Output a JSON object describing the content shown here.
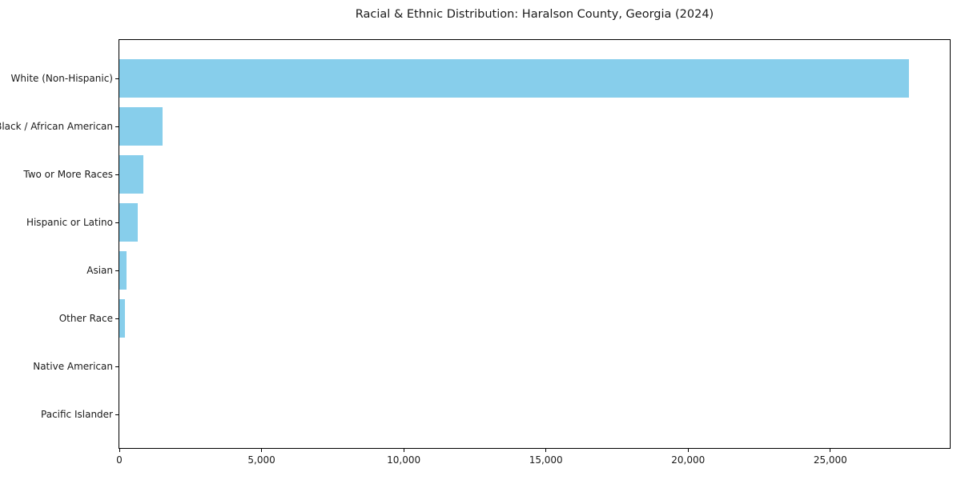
{
  "chart_data": {
    "type": "bar",
    "orientation": "horizontal",
    "title": "Racial & Ethnic Distribution: Haralson County, Georgia (2024)",
    "categories": [
      "White (Non-Hispanic)",
      "Black / African American",
      "Two or More Races",
      "Hispanic or Latino",
      "Asian",
      "Other Race",
      "Native American",
      "Pacific Islander"
    ],
    "values": [
      27750,
      1530,
      855,
      660,
      250,
      210,
      0,
      0
    ],
    "xlabel": "",
    "ylabel": "",
    "xlim": [
      0,
      29200
    ],
    "xticks": [
      0,
      5000,
      10000,
      15000,
      20000,
      25000
    ],
    "xtick_labels": [
      "0",
      "5,000",
      "10,000",
      "15,000",
      "20,000",
      "25,000"
    ],
    "bar_color": "#87CEEB",
    "axis_color": "#000000",
    "grid": false,
    "legend": "none"
  }
}
